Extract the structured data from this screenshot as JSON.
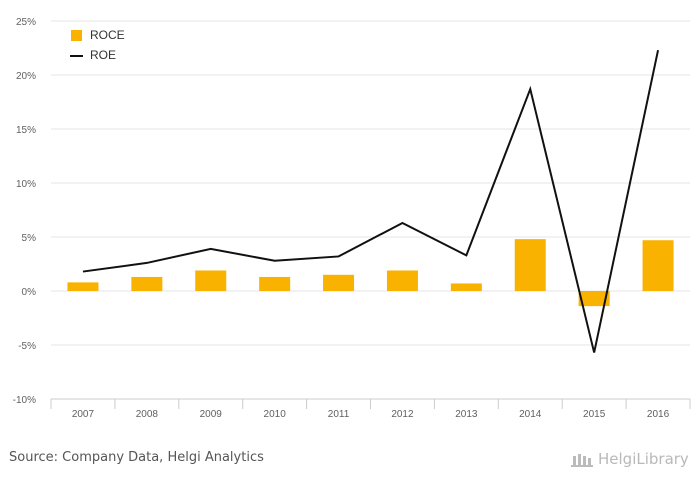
{
  "chart_data": {
    "type": "bar",
    "categories": [
      "2007",
      "2008",
      "2009",
      "2010",
      "2011",
      "2012",
      "2013",
      "2014",
      "2015",
      "2016"
    ],
    "series": [
      {
        "name": "ROCE",
        "kind": "bar",
        "color": "#f9b200",
        "values": [
          0.8,
          1.3,
          1.9,
          1.3,
          1.5,
          1.9,
          0.7,
          4.8,
          -1.4,
          4.7
        ]
      },
      {
        "name": "ROE",
        "kind": "line",
        "color": "#111111",
        "values": [
          1.8,
          2.6,
          3.9,
          2.8,
          3.2,
          6.3,
          3.3,
          18.7,
          -5.7,
          22.3
        ]
      }
    ],
    "ylim": [
      -10,
      25
    ],
    "yticks": [
      -10,
      -5,
      0,
      5,
      10,
      15,
      20,
      25
    ],
    "ytick_labels": [
      "-10%",
      "-5%",
      "0%",
      "5%",
      "10%",
      "15%",
      "20%",
      "25%"
    ],
    "grid": true,
    "legend_position": "top-left"
  },
  "footer": {
    "source": "Source: Company Data, Helgi Analytics",
    "brand": "HelgiLibrary",
    "brand_icon": "library-building-icon"
  }
}
